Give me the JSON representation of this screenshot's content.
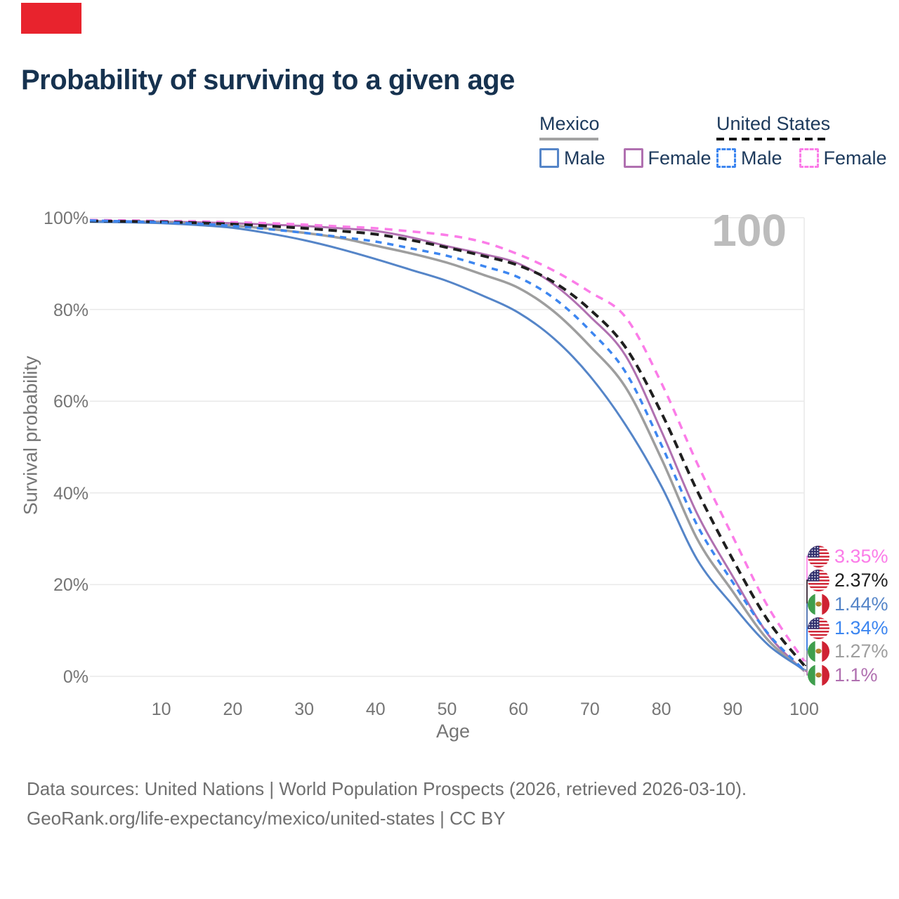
{
  "page": {
    "title": "Probability of surviving to a given age",
    "watermark": "100",
    "marker_color": "#e8232d",
    "title_color": "#16324f"
  },
  "legend": {
    "groups": [
      {
        "label": "Mexico",
        "style": "solid",
        "items": [
          {
            "label": "Male",
            "series": "mx_male"
          },
          {
            "label": "Female",
            "series": "mx_female"
          }
        ]
      },
      {
        "label": "United States",
        "style": "dashed",
        "items": [
          {
            "label": "Male",
            "series": "us_male"
          },
          {
            "label": "Female",
            "series": "us_female"
          }
        ]
      }
    ]
  },
  "axes": {
    "y_label": "Survival probability",
    "x_label": "Age",
    "y_ticks": [
      {
        "label": "100%",
        "pct": 100
      },
      {
        "label": "80%",
        "pct": 80
      },
      {
        "label": "60%",
        "pct": 60
      },
      {
        "label": "40%",
        "pct": 40
      },
      {
        "label": "20%",
        "pct": 20
      },
      {
        "label": "0%",
        "pct": 0
      }
    ],
    "x_ticks": [
      10,
      20,
      30,
      40,
      50,
      60,
      70,
      80,
      90,
      100
    ]
  },
  "end_labels": [
    {
      "series": "us_female",
      "flag": "us",
      "value": "3.35%"
    },
    {
      "series": "us_all",
      "flag": "us",
      "value": "2.37%"
    },
    {
      "series": "mx_male",
      "flag": "mx",
      "value": "1.44%"
    },
    {
      "series": "us_male",
      "flag": "us",
      "value": "1.34%"
    },
    {
      "series": "mx_all",
      "flag": "mx",
      "value": "1.27%"
    },
    {
      "series": "mx_female",
      "flag": "mx",
      "value": "1.1%"
    }
  ],
  "footer": {
    "line1": "Data sources: United Nations | World Population Prospects (2026, retrieved 2026-03-10).",
    "line2": "GeoRank.org/life-expectancy/mexico/united-states | CC BY"
  },
  "chart_data": {
    "type": "line",
    "title": "Probability of surviving to a given age",
    "xlabel": "Age",
    "ylabel": "Survival probability",
    "xlim": [
      0,
      100
    ],
    "ylim": [
      0,
      100
    ],
    "grid": "horizontal",
    "legend_position": "top-right",
    "x": [
      0,
      5,
      10,
      15,
      20,
      25,
      30,
      35,
      40,
      45,
      50,
      55,
      60,
      65,
      70,
      75,
      80,
      85,
      90,
      95,
      100
    ],
    "series": [
      {
        "key": "us_female",
        "name": "United States Female",
        "country": "United States",
        "sex": "Female",
        "style": "dashed",
        "color": "#fb7ce8",
        "width": 3.5,
        "dash": "11 9",
        "values": [
          99.5,
          99.4,
          99.3,
          99.2,
          99.0,
          98.8,
          98.5,
          98.1,
          97.7,
          97.0,
          96.2,
          94.7,
          92.0,
          88.4,
          83.8,
          78.3,
          64.0,
          46.5,
          30.5,
          15.0,
          3.35
        ]
      },
      {
        "key": "us_all",
        "name": "United States (both sexes)",
        "country": "United States",
        "sex": "All",
        "style": "dashed",
        "color": "#1f1f1f",
        "width": 4,
        "dash": "12 8",
        "values": [
          99.3,
          99.2,
          99.1,
          98.9,
          98.6,
          98.2,
          97.7,
          97.1,
          96.4,
          95.1,
          93.5,
          91.7,
          89.6,
          85.9,
          80.0,
          71.7,
          57.5,
          40.5,
          25.5,
          12.0,
          2.37
        ]
      },
      {
        "key": "mx_female",
        "name": "Mexico Female",
        "country": "Mexico",
        "sex": "Female",
        "style": "solid",
        "color": "#b070b0",
        "width": 3,
        "values": [
          99.3,
          99.25,
          99.15,
          99.0,
          98.8,
          98.5,
          98.2,
          97.7,
          97.1,
          95.7,
          93.8,
          92.1,
          90.0,
          85.4,
          78.5,
          69.9,
          53.5,
          35.5,
          21.8,
          9.0,
          1.1
        ]
      },
      {
        "key": "us_male",
        "name": "United States Male",
        "country": "United States",
        "sex": "Male",
        "style": "dashed",
        "color": "#3d86f0",
        "width": 3.5,
        "dash": "9 8",
        "values": [
          99.4,
          99.2,
          99.0,
          98.7,
          98.2,
          97.5,
          96.7,
          95.8,
          94.8,
          93.3,
          91.7,
          89.5,
          87.0,
          82.4,
          75.4,
          66.3,
          50.5,
          33.0,
          20.5,
          9.2,
          1.34
        ]
      },
      {
        "key": "mx_all",
        "name": "Mexico (both sexes)",
        "country": "Mexico",
        "sex": "All",
        "style": "solid",
        "color": "#9e9e9e",
        "width": 3.5,
        "values": [
          99.2,
          99.1,
          99.0,
          98.7,
          98.3,
          97.6,
          96.7,
          95.6,
          93.9,
          92.2,
          90.2,
          87.6,
          84.7,
          79.5,
          72.0,
          63.0,
          47.5,
          30.0,
          18.5,
          7.8,
          1.27
        ]
      },
      {
        "key": "mx_male",
        "name": "Mexico Male",
        "country": "Mexico",
        "sex": "Male",
        "style": "solid",
        "color": "#5585c8",
        "width": 3,
        "values": [
          99.1,
          99.0,
          98.8,
          98.4,
          97.8,
          96.6,
          95.1,
          93.2,
          91.0,
          88.6,
          86.2,
          83.0,
          79.3,
          73.6,
          65.5,
          54.8,
          41.5,
          25.5,
          15.5,
          6.8,
          1.44
        ]
      }
    ]
  }
}
